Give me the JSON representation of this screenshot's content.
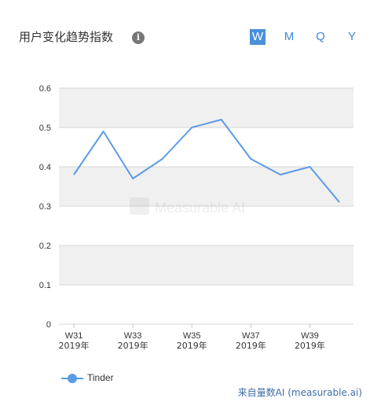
{
  "header": {
    "title": "用户变化趋势指数",
    "info_icon": "info-icon",
    "tabs": [
      {
        "label": "W",
        "active": true
      },
      {
        "label": "M",
        "active": false
      },
      {
        "label": "Q",
        "active": false
      },
      {
        "label": "Y",
        "active": false
      }
    ]
  },
  "watermark": "Measurable AI",
  "chart_data": {
    "type": "line",
    "x": [
      "W31",
      "W32",
      "W33",
      "W34",
      "W35",
      "W36",
      "W37",
      "W38",
      "W39",
      "W40"
    ],
    "x_tick_labels": [
      {
        "week": "W31",
        "year": "2019年"
      },
      {
        "week": "W33",
        "year": "2019年"
      },
      {
        "week": "W35",
        "year": "2019年"
      },
      {
        "week": "W37",
        "year": "2019年"
      },
      {
        "week": "W39",
        "year": "2019年"
      }
    ],
    "y_ticks": [
      "0",
      "0.1",
      "0.2",
      "0.3",
      "0.4",
      "0.5",
      "0.6"
    ],
    "ylim": [
      0,
      0.6
    ],
    "series": [
      {
        "name": "Tinder",
        "color": "#5b9be6",
        "values": [
          0.38,
          0.49,
          0.37,
          0.42,
          0.5,
          0.52,
          0.42,
          0.38,
          0.4,
          0.31
        ]
      }
    ],
    "grid": true,
    "legend_position": "bottom-left"
  },
  "footer": {
    "legend_label": "Tinder",
    "source": "来自量数AI (measurable.ai)"
  }
}
